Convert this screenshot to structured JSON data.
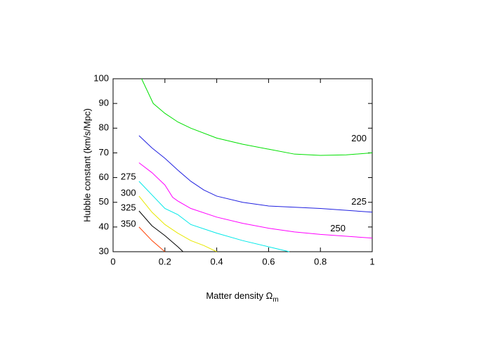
{
  "chart_data": {
    "type": "line",
    "xlabel": "Matter density Ω",
    "xlabel_sub": "m",
    "ylabel": "Hubble constant (km/s/Mpc)",
    "xlim": [
      0,
      1
    ],
    "xticks": [
      0,
      0.2,
      0.4,
      0.6,
      0.8,
      1
    ],
    "ylim": [
      30,
      100
    ],
    "yticks": [
      30,
      40,
      50,
      60,
      70,
      80,
      90,
      100
    ],
    "grid": false,
    "series": [
      {
        "name": "200",
        "color": "#00e000",
        "x": [
          0.11,
          0.155,
          0.2,
          0.25,
          0.3,
          0.4,
          0.5,
          0.6,
          0.7,
          0.8,
          0.9,
          1.0
        ],
        "values": [
          100,
          90,
          86,
          82.5,
          80,
          76,
          73.5,
          71.5,
          69.5,
          69,
          69.2,
          70
        ]
      },
      {
        "name": "225",
        "color": "#2020e0",
        "x": [
          0.1,
          0.15,
          0.2,
          0.25,
          0.3,
          0.35,
          0.4,
          0.5,
          0.6,
          0.8,
          1.0
        ],
        "values": [
          77,
          72,
          67.8,
          63,
          58.5,
          55,
          52.5,
          50,
          48.5,
          47.5,
          46
        ]
      },
      {
        "name": "250",
        "color": "#ff00ff",
        "x": [
          0.1,
          0.15,
          0.2,
          0.23,
          0.25,
          0.3,
          0.4,
          0.5,
          0.6,
          0.7,
          0.8,
          1.0
        ],
        "values": [
          66,
          62,
          57,
          52,
          50.5,
          47.5,
          44,
          41.5,
          39.5,
          38,
          37,
          35.5
        ]
      },
      {
        "name": "275",
        "color": "#00e8e8",
        "x": [
          0.1,
          0.15,
          0.2,
          0.25,
          0.3,
          0.4,
          0.5,
          0.6,
          0.68
        ],
        "values": [
          58.5,
          53,
          47.5,
          45,
          41,
          37.5,
          34.5,
          32,
          30
        ]
      },
      {
        "name": "300",
        "color": "#e8e800",
        "x": [
          0.1,
          0.15,
          0.2,
          0.25,
          0.3,
          0.35,
          0.4
        ],
        "values": [
          52.5,
          46,
          41,
          37.5,
          34.5,
          32.5,
          30
        ]
      },
      {
        "name": "325",
        "color": "#000000",
        "x": [
          0.1,
          0.15,
          0.2,
          0.25,
          0.27
        ],
        "values": [
          46.5,
          40.5,
          36.5,
          32,
          30
        ]
      },
      {
        "name": "350",
        "color": "#ff4000",
        "x": [
          0.1,
          0.15,
          0.2
        ],
        "values": [
          40,
          34.5,
          30
        ]
      }
    ]
  }
}
